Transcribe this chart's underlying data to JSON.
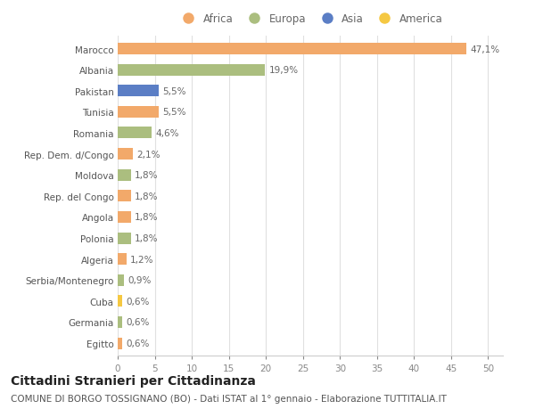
{
  "countries": [
    "Marocco",
    "Albania",
    "Pakistan",
    "Tunisia",
    "Romania",
    "Rep. Dem. d/Congo",
    "Moldova",
    "Rep. del Congo",
    "Angola",
    "Polonia",
    "Algeria",
    "Serbia/Montenegro",
    "Cuba",
    "Germania",
    "Egitto"
  ],
  "values": [
    47.1,
    19.9,
    5.5,
    5.5,
    4.6,
    2.1,
    1.8,
    1.8,
    1.8,
    1.8,
    1.2,
    0.9,
    0.6,
    0.6,
    0.6
  ],
  "labels": [
    "47,1%",
    "19,9%",
    "5,5%",
    "5,5%",
    "4,6%",
    "2,1%",
    "1,8%",
    "1,8%",
    "1,8%",
    "1,8%",
    "1,2%",
    "0,9%",
    "0,6%",
    "0,6%",
    "0,6%"
  ],
  "continents": [
    "Africa",
    "Europa",
    "Asia",
    "Africa",
    "Europa",
    "Africa",
    "Europa",
    "Africa",
    "Africa",
    "Europa",
    "Africa",
    "Europa",
    "America",
    "Europa",
    "Africa"
  ],
  "continent_colors": {
    "Africa": "#F2A96A",
    "Europa": "#ABBE7F",
    "Asia": "#5B7EC5",
    "America": "#F5C842"
  },
  "legend_order": [
    "Africa",
    "Europa",
    "Asia",
    "America"
  ],
  "xlim": [
    0,
    52
  ],
  "xticks": [
    0,
    5,
    10,
    15,
    20,
    25,
    30,
    35,
    40,
    45,
    50
  ],
  "title": "Cittadini Stranieri per Cittadinanza",
  "subtitle": "COMUNE DI BORGO TOSSIGNANO (BO) - Dati ISTAT al 1° gennaio - Elaborazione TUTTITALIA.IT",
  "bg_color": "#FFFFFF",
  "grid_color": "#E0E0E0",
  "bar_height": 0.55,
  "title_fontsize": 10,
  "subtitle_fontsize": 7.5,
  "label_fontsize": 7.5,
  "tick_fontsize": 7.5,
  "legend_fontsize": 8.5
}
